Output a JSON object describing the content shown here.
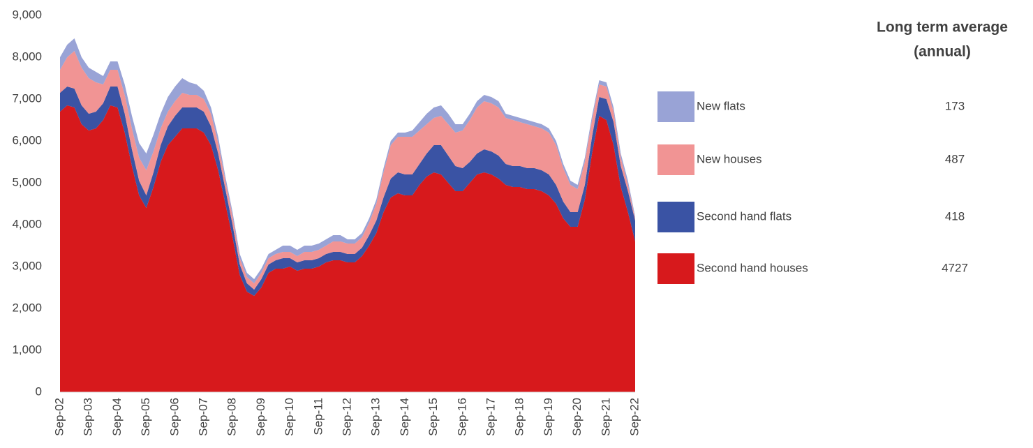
{
  "chart_data": {
    "type": "stacked_area",
    "legend_title": [
      "Long term average",
      "(annual)"
    ],
    "categories": [
      "Sep-02",
      null,
      null,
      null,
      "Sep-03",
      null,
      null,
      null,
      "Sep-04",
      null,
      null,
      null,
      "Sep-05",
      null,
      null,
      null,
      "Sep-06",
      null,
      null,
      null,
      "Sep-07",
      null,
      null,
      null,
      "Sep-08",
      null,
      null,
      null,
      "Sep-09",
      null,
      null,
      null,
      "Sep-10",
      null,
      null,
      null,
      "Sep-11",
      null,
      null,
      null,
      "Sep-12",
      null,
      null,
      null,
      "Sep-13",
      null,
      null,
      null,
      "Sep-14",
      null,
      null,
      null,
      "Sep-15",
      null,
      null,
      null,
      "Sep-16",
      null,
      null,
      null,
      "Sep-17",
      null,
      null,
      null,
      "Sep-18",
      null,
      null,
      null,
      "Sep-19",
      null,
      null,
      null,
      "Sep-20",
      null,
      null,
      null,
      "Sep-21",
      null,
      null,
      null,
      "Sep-22"
    ],
    "series": [
      {
        "name": "New flats",
        "color": "#99a3d6",
        "average": 173,
        "values": [
          300,
          300,
          300,
          250,
          250,
          250,
          200,
          200,
          200,
          250,
          300,
          350,
          400,
          400,
          350,
          350,
          350,
          350,
          300,
          250,
          200,
          150,
          150,
          100,
          100,
          100,
          100,
          100,
          100,
          100,
          100,
          150,
          150,
          150,
          150,
          150,
          150,
          150,
          150,
          150,
          100,
          100,
          100,
          100,
          100,
          100,
          100,
          100,
          100,
          150,
          200,
          250,
          250,
          250,
          250,
          200,
          150,
          150,
          150,
          150,
          150,
          150,
          100,
          100,
          100,
          100,
          100,
          100,
          100,
          100,
          100,
          100,
          100,
          100,
          100,
          100,
          100,
          100,
          100,
          100,
          50
        ]
      },
      {
        "name": "New houses",
        "color": "#f19494",
        "average": 487,
        "values": [
          550,
          700,
          900,
          900,
          850,
          700,
          450,
          400,
          400,
          450,
          500,
          550,
          600,
          500,
          400,
          350,
          350,
          350,
          300,
          300,
          300,
          300,
          250,
          200,
          200,
          150,
          150,
          150,
          150,
          150,
          150,
          150,
          150,
          150,
          200,
          200,
          200,
          200,
          250,
          250,
          250,
          250,
          250,
          300,
          400,
          600,
          800,
          850,
          900,
          900,
          800,
          700,
          650,
          700,
          750,
          800,
          900,
          1000,
          1100,
          1150,
          1150,
          1150,
          1100,
          1100,
          1050,
          1050,
          1000,
          1000,
          1000,
          950,
          800,
          650,
          550,
          550,
          400,
          300,
          300,
          250,
          200,
          150,
          50
        ]
      },
      {
        "name": "Second hand flats",
        "color": "#3a53a4",
        "average": 418,
        "values": [
          450,
          450,
          450,
          450,
          400,
          400,
          400,
          450,
          500,
          450,
          400,
          350,
          300,
          350,
          400,
          450,
          500,
          500,
          500,
          500,
          500,
          450,
          400,
          350,
          300,
          250,
          200,
          150,
          200,
          200,
          200,
          250,
          200,
          200,
          200,
          200,
          200,
          200,
          200,
          200,
          200,
          200,
          200,
          250,
          300,
          350,
          450,
          500,
          500,
          500,
          500,
          550,
          650,
          700,
          650,
          600,
          550,
          500,
          500,
          550,
          550,
          550,
          500,
          500,
          500,
          500,
          500,
          500,
          500,
          450,
          400,
          350,
          350,
          350,
          400,
          450,
          500,
          550,
          500,
          500,
          500
        ]
      },
      {
        "name": "Second hand houses",
        "color": "#d7191c",
        "average": 4727,
        "values": [
          6700,
          6850,
          6800,
          6400,
          6250,
          6300,
          6500,
          6850,
          6800,
          6200,
          5400,
          4700,
          4400,
          4900,
          5500,
          5900,
          6100,
          6300,
          6300,
          6300,
          6200,
          5900,
          5300,
          4500,
          3700,
          2800,
          2400,
          2300,
          2500,
          2850,
          2950,
          2950,
          3000,
          2900,
          2950,
          2950,
          3000,
          3100,
          3150,
          3150,
          3100,
          3100,
          3250,
          3500,
          3800,
          4300,
          4650,
          4750,
          4700,
          4700,
          4950,
          5150,
          5250,
          5200,
          5000,
          4800,
          4800,
          5000,
          5200,
          5250,
          5200,
          5100,
          4950,
          4900,
          4900,
          4850,
          4850,
          4800,
          4700,
          4500,
          4150,
          3950,
          3950,
          4600,
          5700,
          6600,
          6500,
          5900,
          4900,
          4300,
          3600
        ]
      }
    ],
    "ylim": [
      0,
      9000
    ],
    "yticks": [
      {
        "value": 0,
        "label": "0"
      },
      {
        "value": 1000,
        "label": "1,000"
      },
      {
        "value": 2000,
        "label": "2,000"
      },
      {
        "value": 3000,
        "label": "3,000"
      },
      {
        "value": 4000,
        "label": "4,000"
      },
      {
        "value": 5000,
        "label": "5,000"
      },
      {
        "value": 6000,
        "label": "6,000"
      },
      {
        "value": 7000,
        "label": "7,000"
      },
      {
        "value": 8000,
        "label": "8,000"
      },
      {
        "value": 9000,
        "label": "9,000"
      }
    ]
  }
}
